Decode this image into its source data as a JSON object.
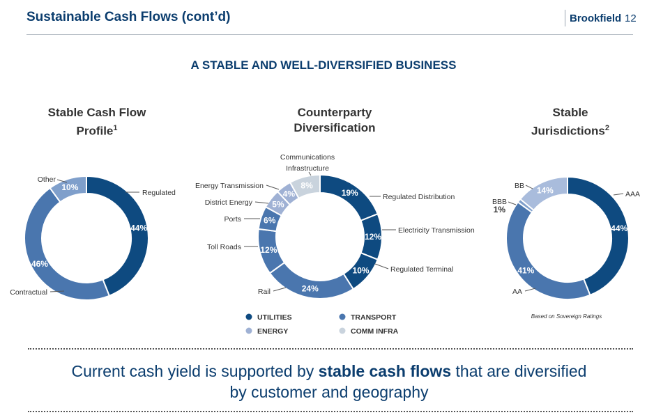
{
  "header": {
    "title": "Sustainable Cash Flows (cont’d)",
    "brand": "Brookfield",
    "page_number": "12"
  },
  "subtitle": "A STABLE AND WELL-DIVERSIFIED BUSINESS",
  "charts": [
    {
      "title_line1": "Stable Cash Flow",
      "title_line2": "Profile",
      "title_sup": "1"
    },
    {
      "title_line1": "Counterparty",
      "title_line2": "Diversification",
      "title_sup": ""
    },
    {
      "title_line1": "Stable",
      "title_line2": "Jurisdictions",
      "title_sup": "2"
    }
  ],
  "legend": [
    {
      "label": "UTILITIES",
      "color": "#0e4a80"
    },
    {
      "label": "TRANSPORT",
      "color": "#4a76ae"
    },
    {
      "label": "ENERGY",
      "color": "#9fb1d4"
    },
    {
      "label": "COMM INFRA",
      "color": "#c9d3dd"
    }
  ],
  "note": "Based on Sovereign Ratings",
  "footer": {
    "part1": "Current cash yield is supported by ",
    "bold": "stable cash flows",
    "part2": " that are diversified",
    "line2": "by customer and geography"
  },
  "chart_data": [
    {
      "type": "pie",
      "title": "Stable Cash Flow Profile",
      "categories": [
        "Regulated",
        "Contractual",
        "Other"
      ],
      "values": [
        44,
        46,
        10
      ],
      "value_labels": [
        "44%",
        "46%",
        "10%"
      ],
      "colors": [
        "#0e4a80",
        "#4a76ae",
        "#7f9fcb"
      ]
    },
    {
      "type": "pie",
      "title": "Counterparty Diversification",
      "categories": [
        "Regulated Distribution",
        "Electricity Transmission",
        "Regulated Terminal",
        "Rail",
        "Toll Roads",
        "Ports",
        "District Energy",
        "Energy Transmission",
        "Communications Infrastructure"
      ],
      "values": [
        19,
        12,
        10,
        24,
        12,
        6,
        5,
        4,
        8
      ],
      "value_labels": [
        "19%",
        "12%",
        "10%",
        "24%",
        "12%",
        "6%",
        "5%",
        "4%",
        "8%"
      ],
      "colors": [
        "#0e4a80",
        "#0e4a80",
        "#0e4a80",
        "#4a76ae",
        "#4a76ae",
        "#4a76ae",
        "#9fb1d4",
        "#9fb1d4",
        "#c9d3dd"
      ]
    },
    {
      "type": "pie",
      "title": "Stable Jurisdictions",
      "categories": [
        "AAA",
        "AA",
        "BBB",
        "BB"
      ],
      "values": [
        44,
        41,
        1,
        14
      ],
      "value_labels": [
        "44%",
        "41%",
        "1%",
        "14%"
      ],
      "colors": [
        "#0e4a80",
        "#4a76ae",
        "#7f9fcb",
        "#a9bcdc"
      ]
    }
  ]
}
